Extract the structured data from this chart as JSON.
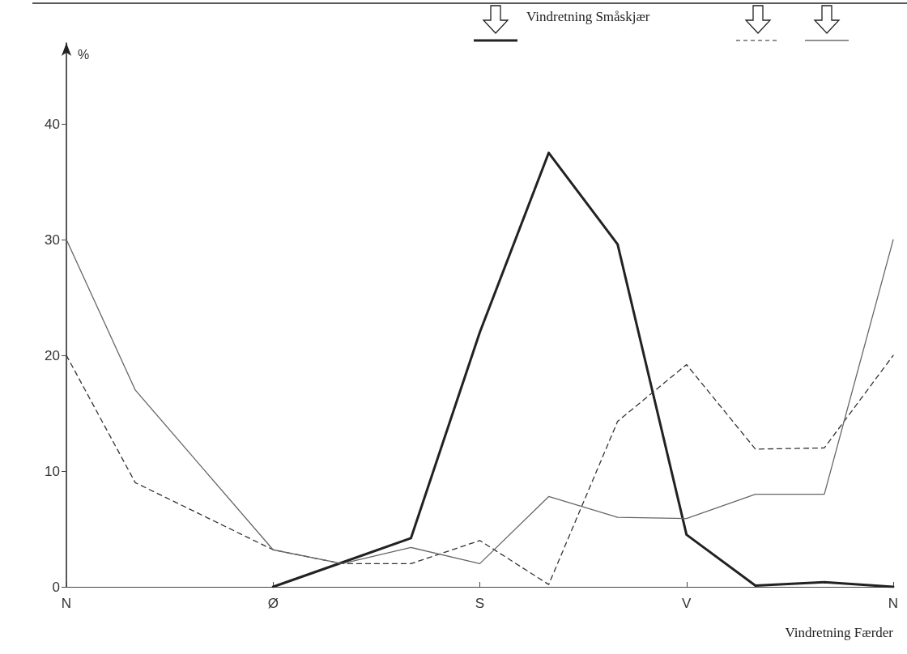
{
  "chart_data": {
    "type": "line",
    "ylabel": "%",
    "xlabel": "Vindretning Færder",
    "annotations": [
      "Vindretning Småskjær"
    ],
    "categories": [
      "N",
      null,
      null,
      "Ø",
      null,
      null,
      "S",
      null,
      null,
      "V",
      null,
      null,
      "N"
    ],
    "ylim": [
      0,
      47
    ],
    "yticks": [
      0,
      10,
      20,
      30,
      40
    ],
    "grid": false,
    "marker": "none",
    "series": [
      {
        "color": "#222222",
        "line_style": "solid",
        "values": [
          null,
          null,
          null,
          0,
          2.1,
          4.2,
          22,
          37.5,
          29.6,
          4.5,
          0.1,
          0.4,
          0
        ]
      },
      {
        "color": "#333333",
        "line_style": "dashed",
        "values": [
          20,
          9,
          6.1,
          3.2,
          2,
          2,
          4,
          0.2,
          14.3,
          19.2,
          11.9,
          12,
          20
        ]
      },
      {
        "color": "#666666",
        "line_style": "solid",
        "values": [
          30,
          17,
          10.1,
          3.2,
          2,
          3.4,
          2,
          7.8,
          6,
          5.9,
          8,
          8,
          30
        ]
      }
    ]
  }
}
